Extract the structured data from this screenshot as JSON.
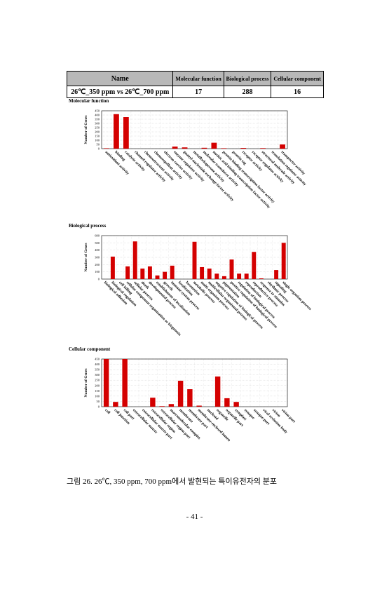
{
  "table": {
    "headers": [
      "Name",
      "Molecular function",
      "Biological process",
      "Cellular component"
    ],
    "rows": [
      [
        "26℃_350 ppm vs 26℃_700 ppm",
        17,
        288,
        16
      ]
    ]
  },
  "charts": [
    {
      "type": "bar",
      "title": "Molecular function",
      "ylabel": "Number of Genes",
      "color": "#d40000",
      "categories": [
        "antioxidant activity",
        "binding",
        "catalytic activity",
        "channel regulator activity",
        "chemoattractant activity",
        "chemorepellent activity",
        "electron carrier activity",
        "enzyme regulator activity",
        "guanyl-nucleotide exchange factor activity",
        "metallochaperone activity",
        "molecular transducer activity",
        "nucleic acid binding transcription factor activity",
        "protein binding transcription factor activity",
        "protein tag",
        "receptor activity",
        "receptor regulator activity",
        "structural molecule activity",
        "translation regulator activity",
        "transporter activity"
      ],
      "values": [
        5,
        410,
        375,
        0,
        0,
        0,
        0,
        25,
        15,
        0,
        10,
        70,
        5,
        0,
        8,
        0,
        6,
        0,
        50
      ],
      "ylim": [
        0,
        450
      ],
      "yticks": [
        0,
        50,
        100,
        150,
        200,
        250,
        300,
        350,
        400,
        450
      ],
      "grid": true
    },
    {
      "type": "bar",
      "title": "Biological process",
      "ylabel": "Number of Genes",
      "color": "#d40000",
      "categories": [
        "biological adhesion",
        "biological regulation",
        "cell killing",
        "cellular component organization or biogenesis",
        "cellular process",
        "death",
        "developmental process",
        "establishment of localization",
        "growth",
        "immune system process",
        "localization",
        "locomotion",
        "metabolic process",
        "multi-organism process",
        "multicellular organismal process",
        "negative regulation of biological process",
        "pigmentation",
        "positive regulation of biological process",
        "regulation of biological process",
        "reproduction",
        "reproductive process",
        "response to stimulus",
        "rhythmic process",
        "signaling",
        "single-organism process"
      ],
      "values": [
        0,
        310,
        0,
        175,
        520,
        145,
        175,
        50,
        100,
        185,
        0,
        0,
        515,
        165,
        145,
        75,
        40,
        270,
        75,
        75,
        375,
        10,
        0,
        125,
        500
      ],
      "ylim": [
        0,
        600
      ],
      "yticks": [
        0,
        100,
        200,
        300,
        400,
        500,
        600
      ],
      "grid": true
    },
    {
      "type": "bar",
      "title": "Cellular component",
      "ylabel": "Number of Genes",
      "color": "#d40000",
      "categories": [
        "cell",
        "cell junction",
        "cell part",
        "extracellular matrix",
        "extracellular matrix part",
        "extracellular region",
        "extracellular region part",
        "macromolecular complex",
        "membrane",
        "membrane part",
        "membrane-enclosed lumen",
        "nucleoid",
        "organelle",
        "organelle part",
        "symplast",
        "synapse",
        "synapse part",
        "viral occlusion body",
        "virion",
        "virion part"
      ],
      "values": [
        450,
        45,
        450,
        0,
        0,
        85,
        5,
        25,
        245,
        165,
        10,
        0,
        285,
        80,
        45,
        0,
        0,
        0,
        0,
        0
      ],
      "ylim": [
        0,
        450
      ],
      "yticks": [
        0,
        50,
        100,
        150,
        200,
        250,
        300,
        350,
        400,
        450
      ],
      "grid": true
    }
  ],
  "caption": "그림 26.  26℃, 350 ppm, 700 ppm에서 발현되는 특이유전자의 분포",
  "page_number": "- 41 -"
}
